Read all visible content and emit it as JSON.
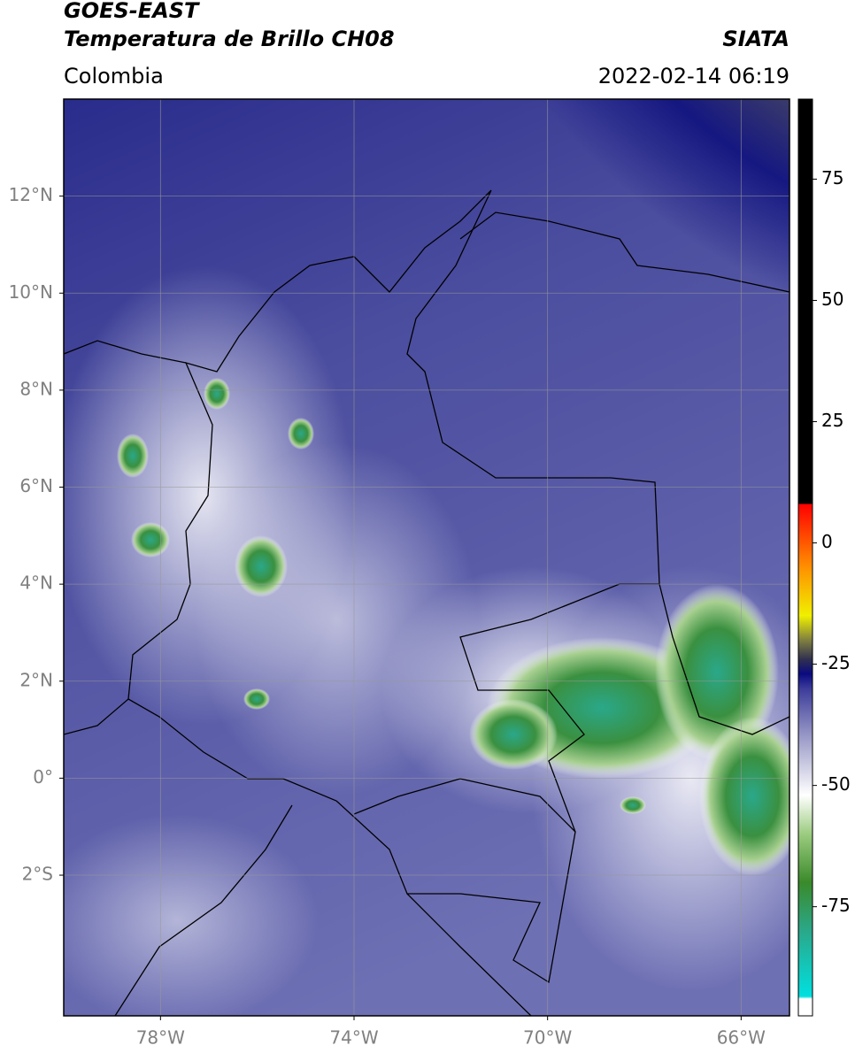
{
  "header": {
    "title_line1": "GOES-EAST",
    "title_line2": "Temperatura de Brillo CH08",
    "source": "SIATA",
    "region": "Colombia",
    "timestamp": "2022-02-14 06:19"
  },
  "map": {
    "lon_range": [
      -80,
      -65
    ],
    "lat_range": [
      -4.9,
      14
    ],
    "lon_ticks": [
      {
        "value": -78,
        "label": "78°W"
      },
      {
        "value": -74,
        "label": "74°W"
      },
      {
        "value": -70,
        "label": "70°W"
      },
      {
        "value": -66,
        "label": "66°W"
      }
    ],
    "lat_ticks": [
      {
        "value": 12,
        "label": "12°N"
      },
      {
        "value": 10,
        "label": "10°N"
      },
      {
        "value": 8,
        "label": "8°N"
      },
      {
        "value": 6,
        "label": "6°N"
      },
      {
        "value": 4,
        "label": "4°N"
      },
      {
        "value": 2,
        "label": "2°N"
      },
      {
        "value": 0,
        "label": "0°"
      },
      {
        "value": -2,
        "label": "2°S"
      }
    ],
    "grid": true
  },
  "colorbar": {
    "range": [
      -97.5,
      91.5
    ],
    "ticks": [
      75,
      50,
      25,
      0,
      -25,
      -50,
      -75
    ],
    "stops": [
      {
        "value": -97.5,
        "color": "#ffffff"
      },
      {
        "value": -94,
        "color": "#ffffff"
      },
      {
        "value": -93.5,
        "color": "#00e0e0"
      },
      {
        "value": -80,
        "color": "#2aa88a"
      },
      {
        "value": -70,
        "color": "#3a8a2a"
      },
      {
        "value": -60,
        "color": "#9ccc80"
      },
      {
        "value": -52,
        "color": "#ffffff"
      },
      {
        "value": -40,
        "color": "#9a9ac8"
      },
      {
        "value": -30,
        "color": "#3c3c9a"
      },
      {
        "value": -27,
        "color": "#0a0a80"
      },
      {
        "value": -24,
        "color": "#303050"
      },
      {
        "value": -20,
        "color": "#808040"
      },
      {
        "value": -15,
        "color": "#f0f000"
      },
      {
        "value": -5,
        "color": "#ff9000"
      },
      {
        "value": 8,
        "color": "#ff0000"
      },
      {
        "value": 8.01,
        "color": "#000000"
      },
      {
        "value": 91.5,
        "color": "#000000"
      }
    ]
  }
}
